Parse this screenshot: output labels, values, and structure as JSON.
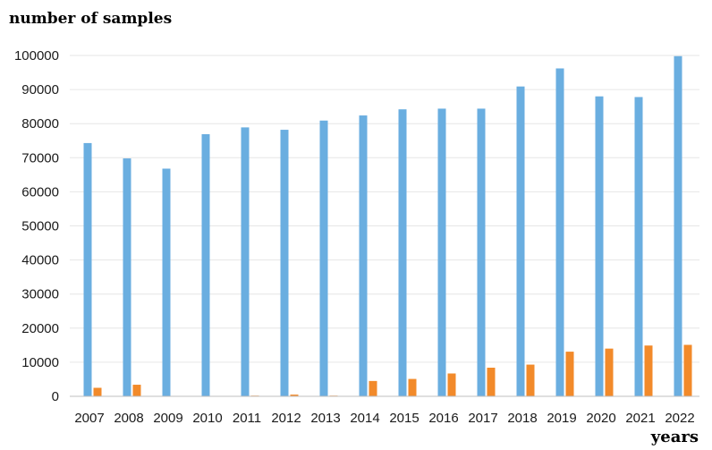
{
  "chart_data": {
    "type": "bar",
    "title": "",
    "ylabel": "number of samples",
    "xlabel": "years",
    "ylim": [
      0,
      100000
    ],
    "yticks": [
      0,
      10000,
      20000,
      30000,
      40000,
      50000,
      60000,
      70000,
      80000,
      90000,
      100000
    ],
    "grid": true,
    "legend": "none",
    "categories": [
      "2007",
      "2008",
      "2009",
      "2010",
      "2011",
      "2012",
      "2013",
      "2014",
      "2015",
      "2016",
      "2017",
      "2018",
      "2019",
      "2020",
      "2021",
      "2022"
    ],
    "series": [
      {
        "color": "#6aaee0",
        "values": [
          74300,
          69800,
          66800,
          76900,
          78900,
          78200,
          80900,
          82400,
          84200,
          84400,
          84400,
          90900,
          96200,
          88000,
          87800,
          99800
        ]
      },
      {
        "color": "#f28a2a",
        "values": [
          2500,
          3400,
          0,
          0,
          200,
          500,
          200,
          4500,
          5100,
          6700,
          8400,
          9300,
          13100,
          14000,
          14900,
          15100
        ]
      }
    ]
  }
}
